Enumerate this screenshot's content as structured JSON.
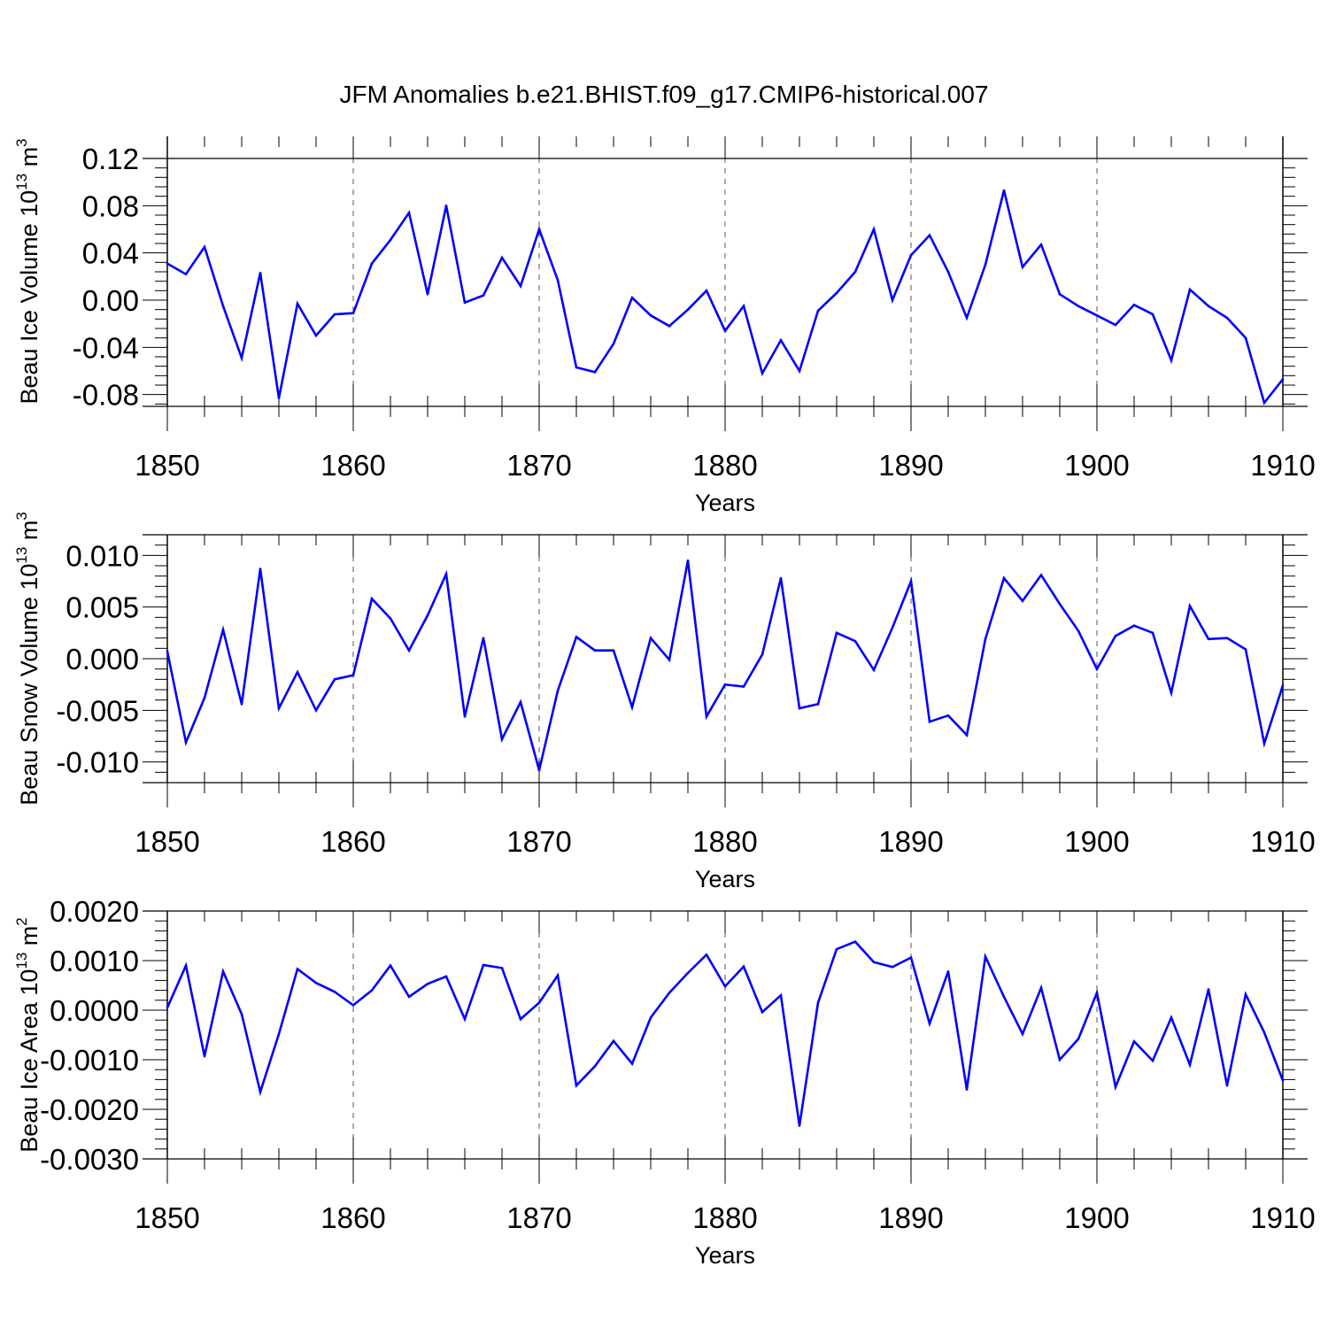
{
  "title": "JFM Anomalies b.e21.BHIST.f09_g17.CMIP6-historical.007",
  "colors": {
    "series": "#0000ff",
    "axis": "#000000",
    "grid": "#555555"
  },
  "chart_data": [
    {
      "type": "line",
      "xlabel": "Years",
      "ylabel_main": "Beau Ice Volume 10",
      "ylabel_exp": "13",
      "ylabel_unit": " m",
      "ylabel_unit_exp": "3",
      "xlim": [
        1850,
        1910
      ],
      "ylim": [
        -0.09,
        0.12
      ],
      "xticks": [
        1850,
        1860,
        1870,
        1880,
        1890,
        1900,
        1910
      ],
      "yticks": [
        0.12,
        0.08,
        0.04,
        0.0,
        -0.04,
        -0.08
      ],
      "ytick_labels": [
        "0.12",
        "0.08",
        "0.04",
        "0.00",
        "-0.04",
        "-0.08"
      ],
      "x": [
        1850,
        1851,
        1852,
        1853,
        1854,
        1855,
        1856,
        1857,
        1858,
        1859,
        1860,
        1861,
        1862,
        1863,
        1864,
        1865,
        1866,
        1867,
        1868,
        1869,
        1870,
        1871,
        1872,
        1873,
        1874,
        1875,
        1876,
        1877,
        1878,
        1879,
        1880,
        1881,
        1882,
        1883,
        1884,
        1885,
        1886,
        1887,
        1888,
        1889,
        1890,
        1891,
        1892,
        1893,
        1894,
        1895,
        1896,
        1897,
        1898,
        1899,
        1900,
        1901,
        1902,
        1903,
        1904,
        1905,
        1906,
        1907,
        1908,
        1909,
        1910
      ],
      "y": [
        0.031,
        0.022,
        0.045,
        -0.005,
        -0.049,
        0.023,
        -0.083,
        -0.003,
        -0.03,
        -0.012,
        -0.011,
        0.031,
        0.051,
        0.074,
        0.005,
        0.08,
        -0.002,
        0.004,
        0.036,
        0.012,
        0.06,
        0.017,
        -0.057,
        -0.061,
        -0.037,
        0.002,
        -0.013,
        -0.022,
        -0.008,
        0.008,
        -0.026,
        -0.005,
        -0.062,
        -0.034,
        -0.06,
        -0.009,
        0.006,
        0.024,
        0.06,
        0.0,
        0.038,
        0.055,
        0.024,
        -0.015,
        0.03,
        0.093,
        0.028,
        0.047,
        0.005,
        -0.005,
        -0.013,
        -0.021,
        -0.004,
        -0.012,
        -0.051,
        0.009,
        -0.005,
        -0.015,
        -0.032,
        -0.087,
        -0.067
      ]
    },
    {
      "type": "line",
      "xlabel": "Years",
      "ylabel_main": "Beau Snow Volume 10",
      "ylabel_exp": "13",
      "ylabel_unit": " m",
      "ylabel_unit_exp": "3",
      "xlim": [
        1850,
        1910
      ],
      "ylim": [
        -0.012,
        0.012
      ],
      "xticks": [
        1850,
        1860,
        1870,
        1880,
        1890,
        1900,
        1910
      ],
      "yticks": [
        0.01,
        0.005,
        0.0,
        -0.005,
        -0.01
      ],
      "ytick_labels": [
        "0.010",
        "0.005",
        "0.000",
        "-0.005",
        "-0.010"
      ],
      "x": [
        1850,
        1851,
        1852,
        1853,
        1854,
        1855,
        1856,
        1857,
        1858,
        1859,
        1860,
        1861,
        1862,
        1863,
        1864,
        1865,
        1866,
        1867,
        1868,
        1869,
        1870,
        1871,
        1872,
        1873,
        1874,
        1875,
        1876,
        1877,
        1878,
        1879,
        1880,
        1881,
        1882,
        1883,
        1884,
        1885,
        1886,
        1887,
        1888,
        1889,
        1890,
        1891,
        1892,
        1893,
        1894,
        1895,
        1896,
        1897,
        1898,
        1899,
        1900,
        1901,
        1902,
        1903,
        1904,
        1905,
        1906,
        1907,
        1908,
        1909,
        1910
      ],
      "y": [
        0.0007,
        -0.0081,
        -0.0038,
        0.0028,
        -0.0044,
        0.0087,
        -0.0048,
        -0.0013,
        -0.005,
        -0.002,
        -0.0016,
        0.0058,
        0.0039,
        0.0008,
        0.0042,
        0.0082,
        -0.0056,
        0.002,
        -0.0078,
        -0.0042,
        -0.0108,
        -0.0031,
        0.0021,
        0.0008,
        0.0008,
        -0.0047,
        0.002,
        -0.0001,
        0.0095,
        -0.0056,
        -0.0025,
        -0.0027,
        0.0004,
        0.0078,
        -0.0048,
        -0.0044,
        0.0025,
        0.0017,
        -0.0011,
        0.003,
        0.0075,
        -0.0061,
        -0.0055,
        -0.0074,
        0.0019,
        0.0078,
        0.0056,
        0.0081,
        0.0053,
        0.0027,
        -0.001,
        0.0022,
        0.0032,
        0.0025,
        -0.0033,
        0.0051,
        0.0019,
        0.002,
        0.0009,
        -0.0082,
        -0.0026
      ]
    },
    {
      "type": "line",
      "xlabel": "Years",
      "ylabel_main": "Beau Ice Area 10",
      "ylabel_exp": "13",
      "ylabel_unit": " m",
      "ylabel_unit_exp": "2",
      "xlim": [
        1850,
        1910
      ],
      "ylim": [
        -0.003,
        0.002
      ],
      "xticks": [
        1850,
        1860,
        1870,
        1880,
        1890,
        1900,
        1910
      ],
      "yticks": [
        0.002,
        0.001,
        0.0,
        -0.001,
        -0.002,
        -0.003
      ],
      "ytick_labels": [
        "0.0020",
        "0.0010",
        "0.0000",
        "-0.0010",
        "-0.0020",
        "-0.0030"
      ],
      "x": [
        1850,
        1851,
        1852,
        1853,
        1854,
        1855,
        1856,
        1857,
        1858,
        1859,
        1860,
        1861,
        1862,
        1863,
        1864,
        1865,
        1866,
        1867,
        1868,
        1869,
        1870,
        1871,
        1872,
        1873,
        1874,
        1875,
        1876,
        1877,
        1878,
        1879,
        1880,
        1881,
        1882,
        1883,
        1884,
        1885,
        1886,
        1887,
        1888,
        1889,
        1890,
        1891,
        1892,
        1893,
        1894,
        1895,
        1896,
        1897,
        1898,
        1899,
        1900,
        1901,
        1902,
        1903,
        1904,
        1905,
        1906,
        1907,
        1908,
        1909,
        1910
      ],
      "y": [
        5e-05,
        0.0009,
        -0.00093,
        0.00078,
        -8e-05,
        -0.00165,
        -0.00048,
        0.00083,
        0.00055,
        0.00037,
        0.0001,
        0.0004,
        0.0009,
        0.00027,
        0.00053,
        0.00068,
        -0.00018,
        0.00091,
        0.00085,
        -0.00018,
        0.00015,
        0.0007,
        -0.00152,
        -0.00113,
        -0.00062,
        -0.00108,
        -0.00015,
        0.00035,
        0.00075,
        0.00112,
        0.00048,
        0.00088,
        -4e-05,
        0.0003,
        -0.00233,
        0.00015,
        0.00123,
        0.00138,
        0.00097,
        0.00087,
        0.00106,
        -0.00027,
        0.00078,
        -0.0016,
        0.00108,
        0.00027,
        -0.00048,
        0.00045,
        -0.001,
        -0.00058,
        0.00035,
        -0.00155,
        -0.00063,
        -0.00102,
        -0.00015,
        -0.0011,
        0.00042,
        -0.00152,
        0.00032,
        -0.00045,
        -0.00142
      ]
    }
  ]
}
